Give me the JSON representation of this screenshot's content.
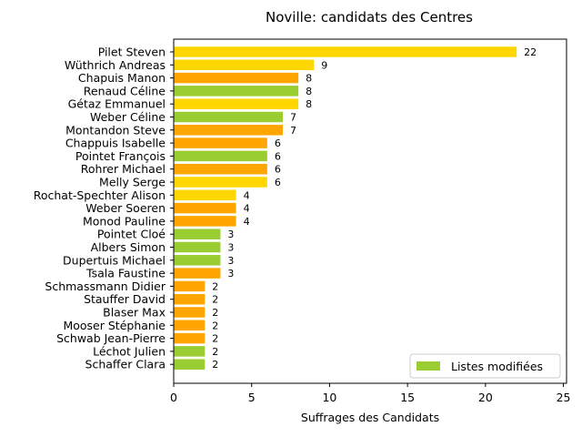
{
  "chart_data": {
    "type": "bar",
    "orientation": "horizontal",
    "title": "Noville: candidats des Centres",
    "xlabel": "Suffrages des Candidats",
    "ylabel": "",
    "xlim": [
      0,
      25.2
    ],
    "xticks": [
      0,
      5,
      10,
      15,
      20,
      25
    ],
    "grid": false,
    "legend": {
      "label": "Listes modifiées",
      "color": "#9acd32",
      "placement": "lower-right"
    },
    "colors": {
      "gold": "#ffd700",
      "orange": "#ffa500",
      "green": "#9acd32"
    },
    "categories": [
      "Pilet Steven",
      "Wüthrich Andreas",
      "Chapuis Manon",
      "Renaud Céline",
      "Gétaz Emmanuel",
      "Weber Céline",
      "Montandon Steve",
      "Chappuis Isabelle",
      "Pointet François",
      "Rohrer Michael",
      "Melly Serge",
      "Rochat-Spechter Alison",
      "Weber Soeren",
      "Monod Pauline",
      "Pointet Cloé",
      "Albers Simon",
      "Dupertuis Michael",
      "Tsala Faustine",
      "Schmassmann Didier",
      "Stauffer David",
      "Blaser Max",
      "Mooser Stéphanie",
      "Schwab Jean-Pierre",
      "Léchot Julien",
      "Schaffer Clara"
    ],
    "values": [
      22,
      9,
      8,
      8,
      8,
      7,
      7,
      6,
      6,
      6,
      6,
      4,
      4,
      4,
      3,
      3,
      3,
      3,
      2,
      2,
      2,
      2,
      2,
      2,
      2
    ],
    "bar_colors": [
      "#ffd700",
      "#ffd700",
      "#ffa500",
      "#9acd32",
      "#ffd700",
      "#9acd32",
      "#ffa500",
      "#ffa500",
      "#9acd32",
      "#ffa500",
      "#ffd700",
      "#ffd700",
      "#ffa500",
      "#ffa500",
      "#9acd32",
      "#9acd32",
      "#9acd32",
      "#ffa500",
      "#ffa500",
      "#ffa500",
      "#ffa500",
      "#ffa500",
      "#ffa500",
      "#9acd32",
      "#9acd32"
    ]
  }
}
